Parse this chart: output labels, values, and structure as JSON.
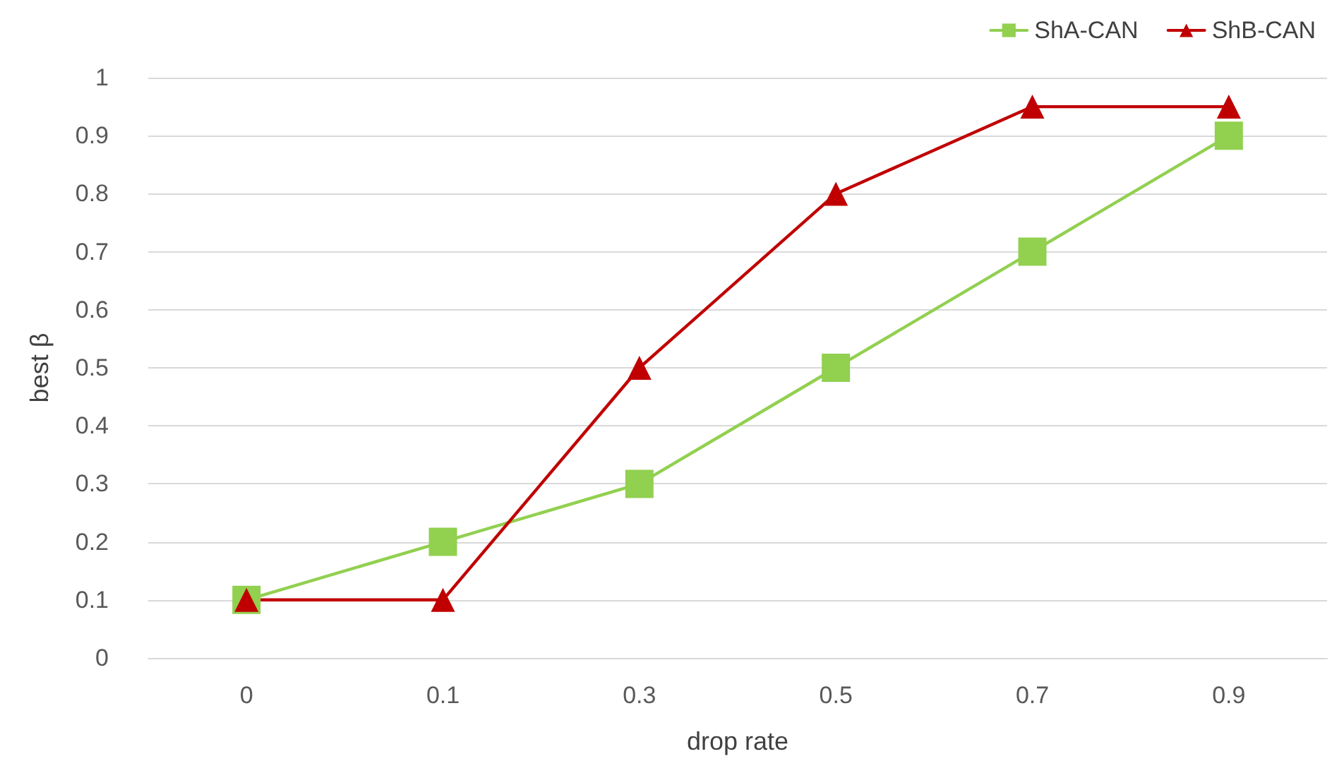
{
  "chart_data": {
    "type": "line",
    "xlabel": "drop rate",
    "ylabel": "best β",
    "categories": [
      "0",
      "0.1",
      "0.3",
      "0.5",
      "0.7",
      "0.9"
    ],
    "series": [
      {
        "name": "ShA-CAN",
        "color": "#92d050",
        "marker": "square",
        "values": [
          0.1,
          0.2,
          0.3,
          0.5,
          0.7,
          0.9
        ]
      },
      {
        "name": "ShB-CAN",
        "color": "#c00000",
        "marker": "triangle",
        "values": [
          0.1,
          0.1,
          0.5,
          0.8,
          0.95,
          0.95
        ]
      }
    ],
    "ylim": [
      0,
      1
    ],
    "yticks": [
      0,
      0.1,
      0.2,
      0.3,
      0.4,
      0.5,
      0.6,
      0.7,
      0.8,
      0.9,
      1
    ],
    "grid": "y",
    "legend": "top right"
  }
}
